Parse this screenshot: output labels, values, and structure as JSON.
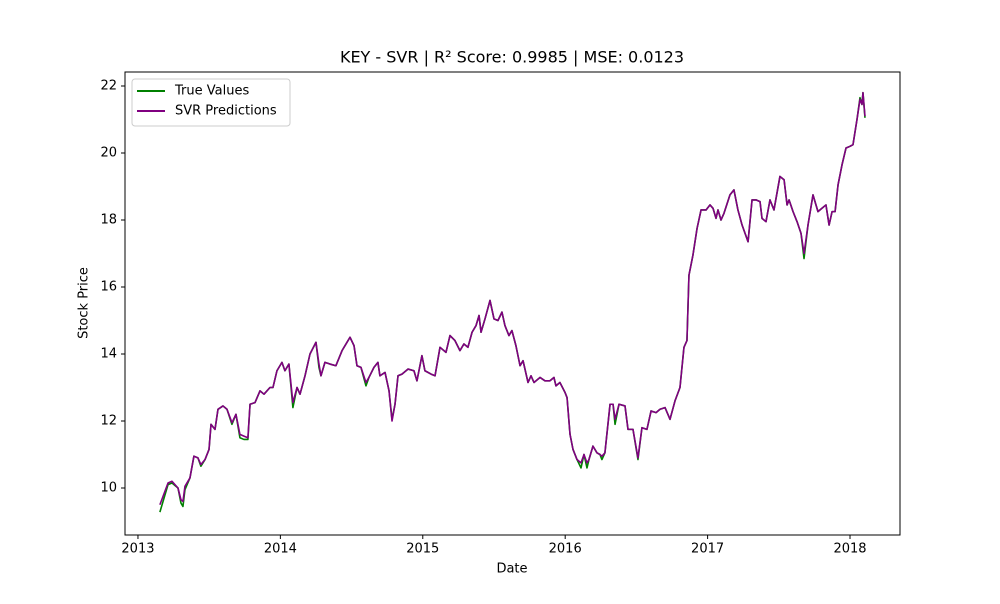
{
  "chart_data": {
    "type": "line",
    "title": "KEY - SVR | R² Score: 0.9985 | MSE: 0.0123",
    "x_label": "Date",
    "y_label": "Stock Price",
    "x": [
      2013.154,
      2013.211,
      2013.239,
      2013.281,
      2013.302,
      2013.316,
      2013.33,
      2013.365,
      2013.393,
      2013.421,
      2013.442,
      2013.471,
      2013.499,
      2013.513,
      2013.541,
      2013.562,
      2013.597,
      2013.625,
      2013.66,
      2013.688,
      2013.716,
      2013.744,
      2013.772,
      2013.787,
      2013.822,
      2013.857,
      2013.885,
      2013.927,
      2013.948,
      2013.976,
      2014.011,
      2014.032,
      2014.06,
      2014.088,
      2014.117,
      2014.138,
      2014.173,
      2014.208,
      2014.25,
      2014.271,
      2014.285,
      2014.313,
      2014.348,
      2014.39,
      2014.433,
      2014.461,
      2014.489,
      2014.517,
      2014.538,
      2014.566,
      2014.601,
      2014.622,
      2014.657,
      2014.685,
      2014.699,
      2014.735,
      2014.763,
      2014.784,
      2014.805,
      2014.826,
      2014.854,
      2014.896,
      2014.938,
      2014.959,
      2014.994,
      2015.015,
      2015.058,
      2015.086,
      2015.121,
      2015.163,
      2015.191,
      2015.226,
      2015.261,
      2015.289,
      2015.317,
      2015.346,
      2015.374,
      2015.395,
      2015.409,
      2015.437,
      2015.472,
      2015.5,
      2015.528,
      2015.556,
      2015.577,
      2015.605,
      2015.626,
      2015.654,
      2015.683,
      2015.704,
      2015.739,
      2015.76,
      2015.781,
      2015.823,
      2015.858,
      2015.893,
      2015.921,
      2015.935,
      2015.963,
      2015.999,
      2016.013,
      2016.034,
      2016.055,
      2016.083,
      2016.111,
      2016.132,
      2016.153,
      2016.167,
      2016.195,
      2016.223,
      2016.244,
      2016.258,
      2016.279,
      2016.315,
      2016.336,
      2016.35,
      2016.378,
      2016.42,
      2016.441,
      2016.476,
      2016.511,
      2016.539,
      2016.574,
      2016.603,
      2016.638,
      2016.666,
      2016.701,
      2016.736,
      2016.771,
      2016.806,
      2016.834,
      2016.855,
      2016.869,
      2016.897,
      2016.926,
      2016.954,
      2016.989,
      2017.017,
      2017.038,
      2017.059,
      2017.073,
      2017.094,
      2017.115,
      2017.157,
      2017.185,
      2017.213,
      2017.242,
      2017.284,
      2017.312,
      2017.34,
      2017.368,
      2017.382,
      2017.41,
      2017.438,
      2017.466,
      2017.508,
      2017.537,
      2017.558,
      2017.572,
      2017.6,
      2017.628,
      2017.656,
      2017.677,
      2017.705,
      2017.74,
      2017.775,
      2017.803,
      2017.831,
      2017.853,
      2017.874,
      2017.895,
      2017.916,
      2017.944,
      2017.972,
      2018.0,
      2018.021,
      2018.049,
      2018.07,
      2018.084,
      2018.091,
      2018.105
    ],
    "series": [
      {
        "name": "True Values",
        "color": "#008000",
        "values": [
          9.28,
          10.1,
          10.15,
          10.0,
          9.55,
          9.45,
          9.95,
          10.3,
          10.95,
          10.9,
          10.65,
          10.85,
          11.15,
          11.9,
          11.75,
          12.35,
          12.45,
          12.35,
          11.9,
          12.2,
          11.5,
          11.45,
          11.45,
          12.5,
          12.55,
          12.9,
          12.8,
          13.0,
          13.0,
          13.5,
          13.75,
          13.5,
          13.7,
          12.4,
          13.0,
          12.8,
          13.35,
          14.0,
          14.35,
          13.6,
          13.35,
          13.75,
          13.7,
          13.65,
          14.1,
          14.3,
          14.5,
          14.25,
          13.65,
          13.6,
          13.05,
          13.3,
          13.6,
          13.75,
          13.35,
          13.45,
          12.9,
          12.05,
          12.5,
          13.35,
          13.4,
          13.55,
          13.5,
          13.2,
          13.95,
          13.5,
          13.4,
          13.35,
          14.2,
          14.05,
          14.55,
          14.4,
          14.1,
          14.3,
          14.2,
          14.65,
          14.85,
          15.15,
          14.65,
          15.05,
          15.6,
          15.05,
          15.0,
          15.25,
          14.85,
          14.55,
          14.7,
          14.25,
          13.65,
          13.8,
          13.15,
          13.35,
          13.15,
          13.3,
          13.2,
          13.2,
          13.3,
          13.05,
          13.15,
          12.85,
          12.7,
          11.6,
          11.15,
          10.85,
          10.6,
          11.0,
          10.6,
          10.85,
          11.25,
          11.05,
          11.0,
          10.85,
          11.05,
          12.5,
          12.5,
          11.9,
          12.5,
          12.45,
          11.75,
          11.75,
          10.85,
          11.8,
          11.75,
          12.3,
          12.25,
          12.35,
          12.4,
          12.05,
          12.6,
          13.0,
          14.2,
          14.4,
          16.35,
          16.95,
          17.75,
          18.3,
          18.3,
          18.45,
          18.35,
          18.05,
          18.3,
          18.0,
          18.2,
          18.75,
          18.9,
          18.3,
          17.85,
          17.35,
          18.6,
          18.6,
          18.55,
          18.05,
          17.95,
          18.6,
          18.3,
          19.3,
          19.2,
          18.45,
          18.6,
          18.25,
          17.95,
          17.6,
          16.85,
          17.85,
          18.75,
          18.25,
          18.35,
          18.45,
          17.85,
          18.25,
          18.25,
          19.05,
          19.65,
          20.15,
          20.2,
          20.25,
          21.0,
          21.65,
          21.45,
          21.8,
          21.05
        ]
      },
      {
        "name": "SVR Predictions",
        "color": "#800080",
        "values": [
          9.5,
          10.15,
          10.2,
          10.0,
          9.65,
          9.6,
          10.05,
          10.3,
          10.95,
          10.9,
          10.7,
          10.85,
          11.15,
          11.9,
          11.75,
          12.35,
          12.45,
          12.35,
          11.95,
          12.2,
          11.6,
          11.55,
          11.5,
          12.5,
          12.55,
          12.9,
          12.8,
          13.0,
          13.0,
          13.5,
          13.75,
          13.5,
          13.7,
          12.55,
          13.0,
          12.8,
          13.35,
          14.0,
          14.35,
          13.7,
          13.35,
          13.75,
          13.7,
          13.65,
          14.1,
          14.3,
          14.5,
          14.25,
          13.65,
          13.6,
          13.15,
          13.3,
          13.6,
          13.75,
          13.35,
          13.45,
          12.9,
          12.0,
          12.5,
          13.35,
          13.4,
          13.55,
          13.5,
          13.2,
          13.95,
          13.5,
          13.4,
          13.35,
          14.2,
          14.05,
          14.55,
          14.4,
          14.1,
          14.3,
          14.2,
          14.65,
          14.85,
          15.15,
          14.65,
          15.05,
          15.6,
          15.05,
          15.0,
          15.25,
          14.85,
          14.55,
          14.7,
          14.25,
          13.65,
          13.8,
          13.15,
          13.35,
          13.15,
          13.3,
          13.2,
          13.2,
          13.3,
          13.05,
          13.15,
          12.85,
          12.7,
          11.6,
          11.15,
          10.85,
          10.75,
          11.0,
          10.75,
          10.85,
          11.25,
          11.05,
          11.0,
          10.95,
          11.05,
          12.5,
          12.5,
          12.05,
          12.5,
          12.45,
          11.75,
          11.75,
          10.9,
          11.8,
          11.75,
          12.3,
          12.25,
          12.35,
          12.4,
          12.05,
          12.6,
          13.0,
          14.2,
          14.4,
          16.35,
          16.95,
          17.75,
          18.3,
          18.3,
          18.45,
          18.35,
          18.05,
          18.3,
          18.0,
          18.2,
          18.75,
          18.9,
          18.3,
          17.85,
          17.35,
          18.6,
          18.6,
          18.55,
          18.05,
          17.95,
          18.6,
          18.3,
          19.3,
          19.2,
          18.45,
          18.6,
          18.25,
          17.95,
          17.6,
          17.0,
          17.85,
          18.75,
          18.25,
          18.35,
          18.45,
          17.85,
          18.25,
          18.25,
          19.05,
          19.65,
          20.15,
          20.2,
          20.25,
          21.0,
          21.6,
          21.45,
          21.8,
          21.1
        ]
      }
    ],
    "xlim": [
      2012.909,
      2018.351
    ],
    "xticks": [
      2013,
      2014,
      2015,
      2016,
      2017,
      2018
    ],
    "ylim": [
      8.597,
      22.418
    ],
    "yticks": [
      10,
      12,
      14,
      16,
      18,
      20,
      22
    ],
    "legend": "upper left",
    "grid": false
  }
}
